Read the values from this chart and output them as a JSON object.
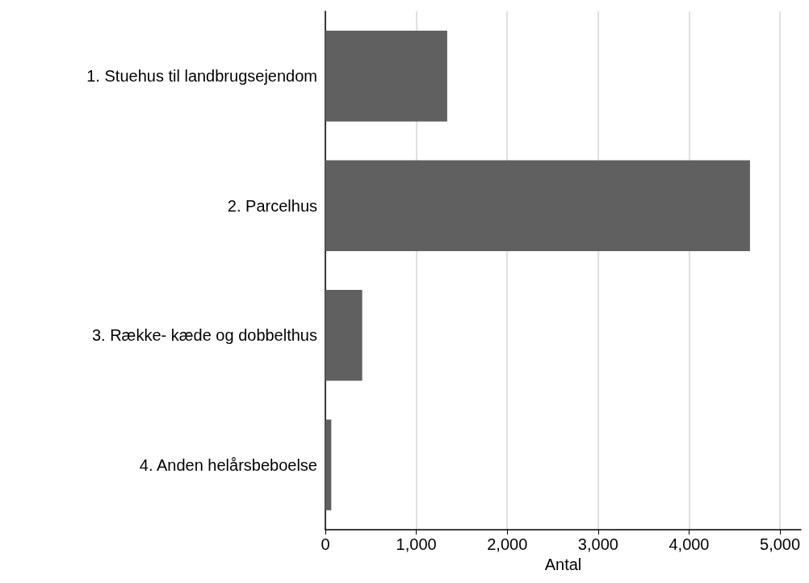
{
  "chart_data": {
    "type": "bar",
    "orientation": "horizontal",
    "xlabel": "Antal",
    "categories": [
      "1. Stuehus til landbrugsejendom",
      "2. Parcelhus",
      "3. Række- kæde og dobbelthus",
      "4. Anden helårsbeboelse"
    ],
    "values": [
      1340,
      4670,
      405,
      65
    ],
    "color": "#606060",
    "xlim": [
      0,
      5230
    ],
    "xticks": [
      {
        "value": 0,
        "label": "0"
      },
      {
        "value": 1000,
        "label": "1,000"
      },
      {
        "value": 2000,
        "label": "2,000"
      },
      {
        "value": 3000,
        "label": "3,000"
      },
      {
        "value": 4000,
        "label": "4,000"
      },
      {
        "value": 5000,
        "label": "5,000"
      }
    ],
    "grid": "x"
  }
}
